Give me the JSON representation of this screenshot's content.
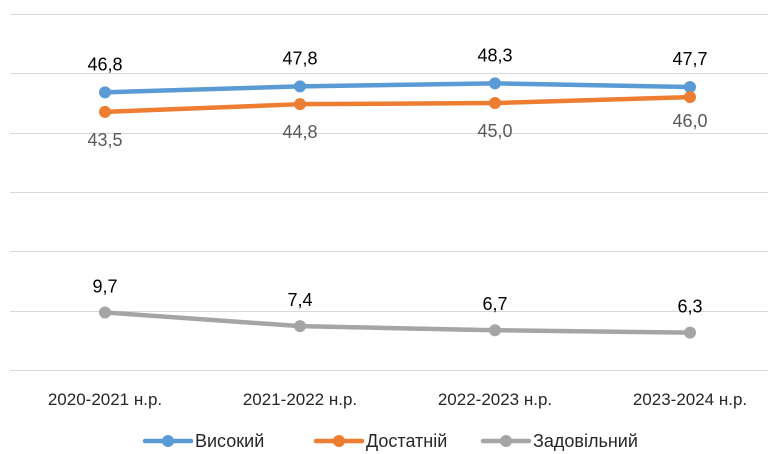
{
  "chart_data": {
    "type": "line",
    "categories": [
      "2020-2021 н.р.",
      "2021-2022 н.р.",
      "2022-2023 н.р.",
      "2023-2024 н.р."
    ],
    "series": [
      {
        "name": "Високий",
        "values": [
          46.8,
          47.8,
          48.3,
          47.7
        ],
        "labels": [
          "46,8",
          "47,8",
          "48,3",
          "47,7"
        ],
        "color": "#5b9bd5",
        "label_color": "#000000"
      },
      {
        "name": "Достатній",
        "values": [
          43.5,
          44.8,
          45.0,
          46.0
        ],
        "labels": [
          "43,5",
          "44,8",
          "45,0",
          "46,0"
        ],
        "color": "#ed7d31",
        "label_color": "#595959"
      },
      {
        "name": "Задовільний",
        "values": [
          9.7,
          7.4,
          6.7,
          6.3
        ],
        "labels": [
          "9,7",
          "7,4",
          "6,7",
          "6,3"
        ],
        "color": "#a5a5a5",
        "label_color": "#000000"
      }
    ],
    "ylim": [
      0,
      60
    ],
    "grid": true,
    "legend_position": "bottom"
  }
}
